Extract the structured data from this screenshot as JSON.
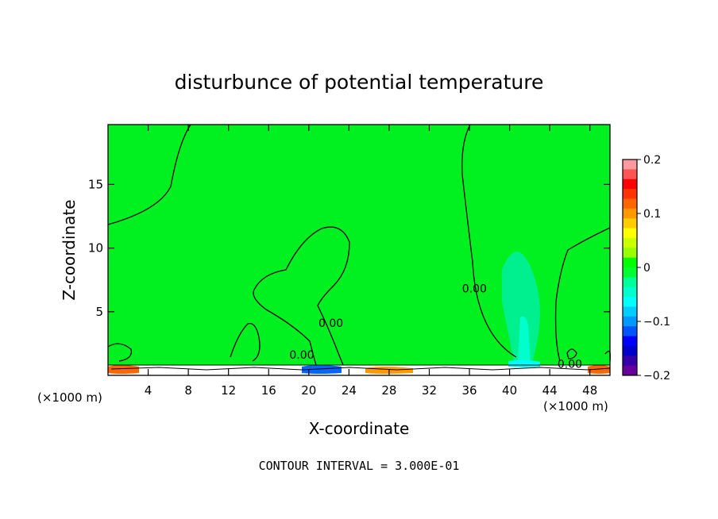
{
  "chart_data": {
    "type": "heatmap",
    "title": "disturbunce of potential temperature",
    "xlabel": "X-coordinate",
    "ylabel": "Z-coordinate",
    "x_unit_left": "(×1000 m)",
    "x_unit_right": "(×1000 m)",
    "xlim": [
      0,
      50
    ],
    "ylim": [
      0,
      19.7
    ],
    "x_ticks": [
      4,
      8,
      12,
      16,
      20,
      24,
      28,
      32,
      36,
      40,
      44,
      48
    ],
    "y_ticks": [
      5,
      10,
      15
    ],
    "contour_labels": [
      {
        "text": "0.00",
        "x": 36.5,
        "z": 6.5
      },
      {
        "text": "0.00",
        "x": 22.2,
        "z": 3.8
      },
      {
        "text": "0.00",
        "x": 19.3,
        "z": 1.3
      },
      {
        "text": "0.00",
        "x": 46.0,
        "z": 0.6
      }
    ],
    "colorbar": {
      "min": -0.2,
      "max": 0.2,
      "tick_labels": [
        "0.2",
        "0.1",
        "0",
        "−0.1",
        "−0.2"
      ],
      "tick_values": [
        0.2,
        0.1,
        0,
        -0.1,
        -0.2
      ],
      "colors_top_to_bottom": [
        "#ff9aa0",
        "#ff5555",
        "#ff0000",
        "#ff3300",
        "#ff6600",
        "#ff9900",
        "#ffcc00",
        "#ffff00",
        "#ccff00",
        "#99ff00",
        "#00ff00",
        "#00ff33",
        "#00ff99",
        "#00ffcc",
        "#00ffff",
        "#00ccff",
        "#0099ff",
        "#0055ff",
        "#0000ff",
        "#0000cc",
        "#3300aa",
        "#660099"
      ]
    },
    "background_value_color": "#00f020",
    "negative_region_color": "#00f090",
    "contour_interval_text": "CONTOUR INTERVAL = 3.000E-01"
  }
}
